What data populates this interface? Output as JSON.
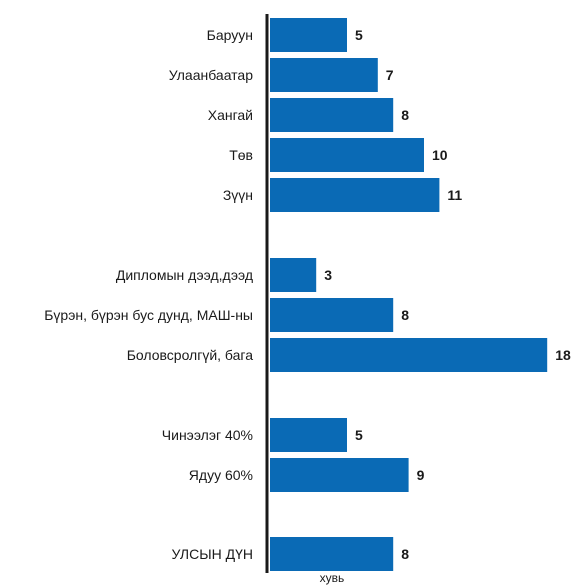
{
  "chart_data": {
    "type": "bar",
    "orientation": "horizontal",
    "unit_label": "хувь",
    "bar_color": "#0a6ab5",
    "axis_color": "#1a1a1a",
    "grid": false,
    "xlim": [
      0,
      18
    ],
    "groups": [
      {
        "categories": [
          "Баруун",
          "Улаанбаатар",
          "Хангай",
          "Төв",
          "Зүүн"
        ],
        "values": [
          5,
          7,
          8,
          10,
          11
        ]
      },
      {
        "categories": [
          "Дипломын дээд,дээд",
          "Бүрэн, бүрэн бус дунд, МАШ-ны",
          "Боловсролгүй, бага"
        ],
        "values": [
          3,
          8,
          18
        ]
      },
      {
        "categories": [
          "Чинээлэг 40%",
          "Ядуу 60%"
        ],
        "values": [
          5,
          9
        ]
      },
      {
        "categories": [
          "УЛСЫН ДҮН"
        ],
        "values": [
          8
        ]
      }
    ]
  }
}
